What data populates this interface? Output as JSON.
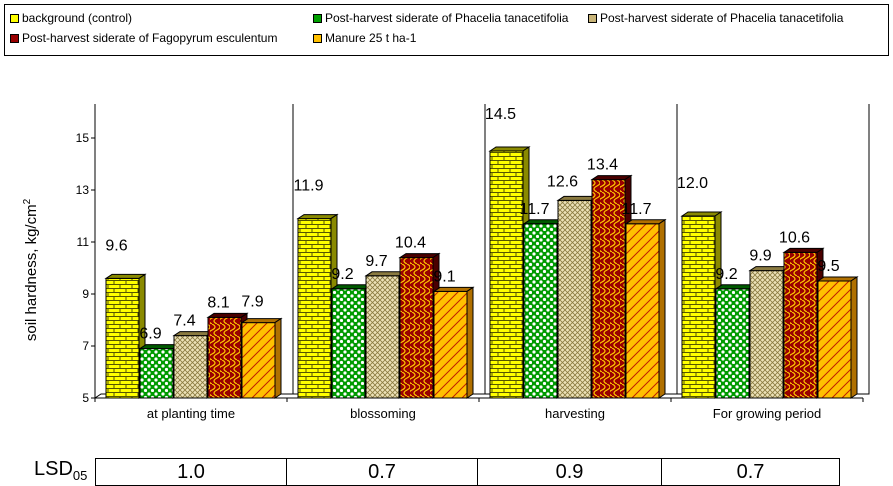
{
  "legend": [
    {
      "name": "background (control)",
      "color": "#ffff00",
      "pattern": "brick-yellow"
    },
    {
      "name": "Post-harvest siderate of Phacelia tanacetifolia",
      "color": "#00a000",
      "pattern": "dots-green"
    },
    {
      "name": "Post-harvest siderate of Phacelia tanacetifolia",
      "color": "#c8b478",
      "pattern": "lattice-beige"
    },
    {
      "name": "Post-harvest siderate of Fagopyrum esculentum",
      "color": "#990000",
      "pattern": "wave-red"
    },
    {
      "name": "Manure 25 t ha-1",
      "color": "#ffc000",
      "pattern": "diag-orange"
    }
  ],
  "chart_data": {
    "type": "bar",
    "ylabel": "soil hardness, kg/cm",
    "ylabel_sup": "2",
    "ylim": [
      5,
      16
    ],
    "yticks": [
      5,
      7,
      9,
      11,
      13,
      15
    ],
    "categories": [
      "at planting time",
      "blossoming",
      "harvesting",
      "For growing period"
    ],
    "series": [
      {
        "name": "background (control)",
        "values": [
          9.6,
          11.9,
          14.5,
          12.0
        ],
        "labels": [
          "9.6",
          "11.9",
          "14.5",
          "12.0"
        ]
      },
      {
        "name": "Post-harvest siderate of Phacelia tanacetifolia",
        "values": [
          6.9,
          9.2,
          11.7,
          9.2
        ],
        "labels": [
          "6.9",
          "9.2",
          "11.7",
          "9.2"
        ]
      },
      {
        "name": "Post-harvest siderate of Phacelia tanacetifolia",
        "values": [
          7.4,
          9.7,
          12.6,
          9.9
        ],
        "labels": [
          "7.4",
          "9.7",
          "12.6",
          "9.9"
        ]
      },
      {
        "name": "Post-harvest siderate of Fagopyrum esculentum",
        "values": [
          8.1,
          10.4,
          13.4,
          10.6
        ],
        "labels": [
          "8.1",
          "10.4",
          "13.4",
          "10.6"
        ]
      },
      {
        "name": "Manure 25 t ha-1",
        "values": [
          7.9,
          9.1,
          11.7,
          9.5
        ],
        "labels": [
          "7.9",
          "9.1",
          "11.7",
          "9.5"
        ]
      }
    ]
  },
  "lsd": {
    "label": "LSD",
    "label_sub": "05",
    "values": [
      "1.0",
      "0.7",
      "0.9",
      "0.7"
    ]
  }
}
